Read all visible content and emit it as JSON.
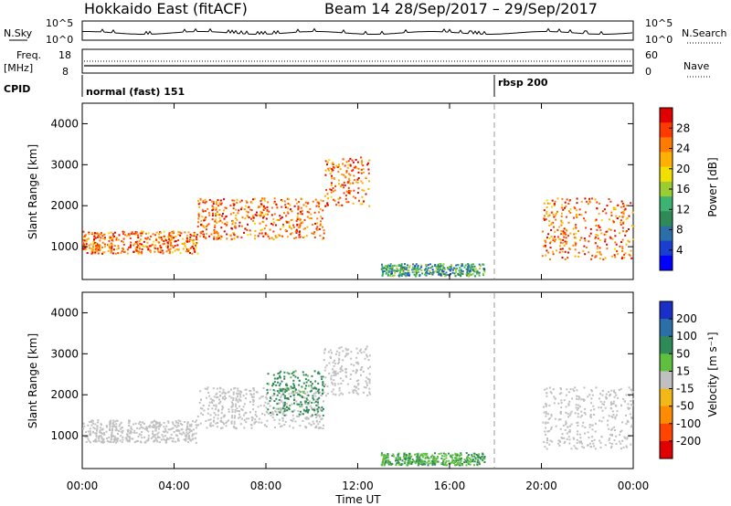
{
  "header": {
    "title_left": "Hokkaido East (fitACF)",
    "title_right": "Beam 14  28/Sep/2017 – 29/Sep/2017"
  },
  "strips": {
    "nsky_label": "N.Sky",
    "nsky_ticks": [
      "10^5",
      "10^0"
    ],
    "nsearch_label": "N.Search",
    "freq_label": "Freq.",
    "freq_unit": "[MHz]",
    "freq_ticks": [
      "18",
      "8"
    ],
    "nave_ticks": [
      "60",
      "0"
    ],
    "nave_label": "Nave",
    "cpid_label": "CPID",
    "cpid_segments": [
      {
        "label": "normal (fast) 151",
        "start_hour": 0
      },
      {
        "label": "rbsp 200",
        "start_hour": 18
      }
    ]
  },
  "colorbars": {
    "power": {
      "title": "Power [dB]",
      "ticks": [
        "28",
        "24",
        "20",
        "16",
        "12",
        "8",
        "4"
      ],
      "colors": [
        "#e00000",
        "#ff3a00",
        "#ff7a00",
        "#ffb000",
        "#f0e000",
        "#9acd32",
        "#3cb371",
        "#2e8b57",
        "#2a6fa8",
        "#1a3fd0",
        "#0000ff"
      ]
    },
    "velocity": {
      "title": "Velocity [m s⁻¹]",
      "ticks": [
        "200",
        "100",
        "50",
        "15",
        "-15",
        "-50",
        "-100",
        "-200"
      ],
      "colors": [
        "#1a2fc8",
        "#2a6fa8",
        "#2e8b57",
        "#5fbf3f",
        "#c0c0c0",
        "#f2b818",
        "#ff8c00",
        "#ff4500",
        "#e00000"
      ]
    }
  },
  "chart_data": [
    {
      "type": "heatmap",
      "name": "power",
      "ylabel": "Slant Range [km]",
      "ylim": [
        200,
        4500
      ],
      "xlim_hours": [
        0,
        24
      ],
      "yticks": [
        1000,
        2000,
        3000,
        4000
      ],
      "xticks": [
        "00:00",
        "04:00",
        "08:00",
        "12:00",
        "16:00",
        "20:00",
        "00:00"
      ],
      "xlabel": "Time UT",
      "grid": false,
      "echo_bands": [
        {
          "t0": 0.0,
          "t1": 5.0,
          "r0": 850,
          "r1": 1400,
          "value": 24
        },
        {
          "t0": 5.0,
          "t1": 10.5,
          "r0": 1200,
          "r1": 2200,
          "value": 24
        },
        {
          "t0": 10.5,
          "t1": 12.5,
          "r0": 2000,
          "r1": 3200,
          "value": 24
        },
        {
          "t0": 13.0,
          "t1": 17.5,
          "r0": 300,
          "r1": 600,
          "value": 12
        },
        {
          "t0": 20.0,
          "t1": 24.0,
          "r0": 700,
          "r1": 2200,
          "value": 24
        }
      ]
    },
    {
      "type": "heatmap",
      "name": "velocity",
      "ylabel": "Slant Range [km]",
      "ylim": [
        200,
        4500
      ],
      "xlim_hours": [
        0,
        24
      ],
      "yticks": [
        1000,
        2000,
        3000,
        4000
      ],
      "xticks": [
        "00:00",
        "04:00",
        "08:00",
        "12:00",
        "16:00",
        "20:00",
        "00:00"
      ],
      "xlabel": "Time UT",
      "grid": false,
      "echo_bands": [
        {
          "t0": 0.0,
          "t1": 5.0,
          "r0": 850,
          "r1": 1400,
          "value": 0
        },
        {
          "t0": 5.0,
          "t1": 10.5,
          "r0": 1200,
          "r1": 2200,
          "value": 0
        },
        {
          "t0": 8.0,
          "t1": 10.5,
          "r0": 1500,
          "r1": 2600,
          "value": 40
        },
        {
          "t0": 10.5,
          "t1": 12.5,
          "r0": 2000,
          "r1": 3200,
          "value": 0
        },
        {
          "t0": 13.0,
          "t1": 17.5,
          "r0": 300,
          "r1": 600,
          "value": 30
        },
        {
          "t0": 20.0,
          "t1": 24.0,
          "r0": 700,
          "r1": 2200,
          "value": 0
        }
      ]
    }
  ]
}
